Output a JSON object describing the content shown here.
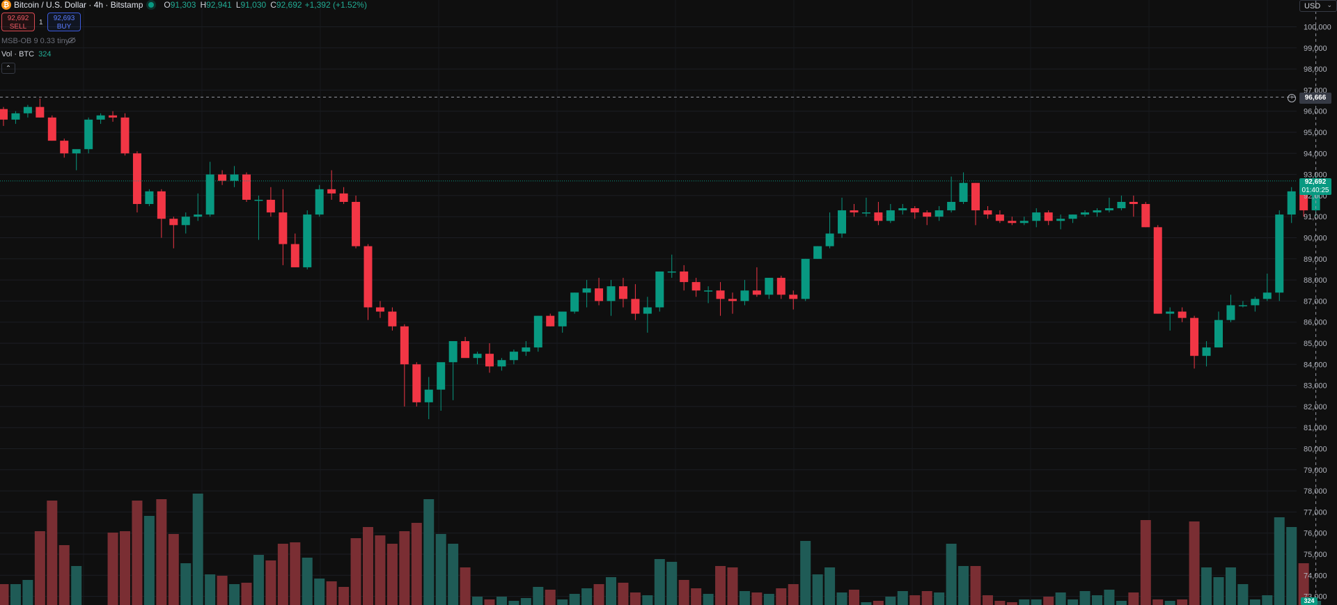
{
  "header": {
    "symbol_icon": "bitcoin-icon",
    "title": "Bitcoin / U.S. Dollar · 4h · Bitstamp",
    "open_key": "O",
    "open_val": "91,303",
    "high_key": "H",
    "high_val": "92,941",
    "low_key": "L",
    "low_val": "91,030",
    "close_key": "C",
    "close_val": "92,692",
    "change": "+1,392 (+1.52%)"
  },
  "trade": {
    "sell_price": "92,692",
    "sell_label": "SELL",
    "buy_price": "92,693",
    "buy_label": "BUY",
    "spread": "1"
  },
  "indicators": {
    "msb": "MSB-OB 9 0.33 tiny",
    "volume_label": "Vol · BTC",
    "volume_value": "324"
  },
  "axis": {
    "currency": "USD",
    "crosshair_price": "96,666",
    "last_price": "92,692",
    "countdown": "01:40:25",
    "volume_tag": "324",
    "ticks": [
      "100,000",
      "99,000",
      "98,000",
      "97,000",
      "96,000",
      "95,000",
      "94,000",
      "93,000",
      "92,000",
      "91,000",
      "90,000",
      "89,000",
      "88,000",
      "87,000",
      "86,000",
      "85,000",
      "84,000",
      "83,000",
      "82,000",
      "81,000",
      "80,000",
      "79,000",
      "78,000",
      "77,000",
      "76,000",
      "75,000",
      "74,000",
      "73,000"
    ]
  },
  "colors": {
    "up": "#089981",
    "down": "#f23645",
    "bg": "#0f0f0f",
    "vol_up": "#1f5b56",
    "vol_down": "#7a2e33"
  },
  "chart_data": {
    "type": "candlestick",
    "symbol": "BTCUSD",
    "interval": "4h",
    "ylim": [
      73000,
      100500
    ],
    "candles": [
      [
        96100,
        96200,
        95300,
        95600,
        15
      ],
      [
        95600,
        96000,
        95400,
        95900,
        15
      ],
      [
        95900,
        96300,
        95700,
        96200,
        18
      ],
      [
        96200,
        96600,
        95700,
        95700,
        53
      ],
      [
        95700,
        95800,
        94600,
        94600,
        75
      ],
      [
        94600,
        94700,
        93800,
        94000,
        43
      ],
      [
        94000,
        94100,
        93200,
        94200,
        28
      ],
      [
        94200,
        95700,
        94000,
        95600,
        0
      ],
      [
        95600,
        95900,
        95400,
        95800,
        0
      ],
      [
        95800,
        96000,
        95500,
        95700,
        52
      ],
      [
        95700,
        95900,
        93900,
        94000,
        53
      ],
      [
        94000,
        94100,
        91200,
        91600,
        75
      ],
      [
        91600,
        92300,
        91500,
        92200,
        64
      ],
      [
        92200,
        92300,
        90000,
        90900,
        76
      ],
      [
        90900,
        91000,
        89500,
        90600,
        51
      ],
      [
        90600,
        91200,
        90200,
        91000,
        30
      ],
      [
        91000,
        92100,
        90800,
        91100,
        80
      ],
      [
        91100,
        93600,
        91000,
        93000,
        22
      ],
      [
        93000,
        93200,
        92500,
        92700,
        21
      ],
      [
        92700,
        93400,
        92400,
        93000,
        15
      ],
      [
        93000,
        93100,
        91700,
        91800,
        16
      ],
      [
        91800,
        92000,
        89900,
        91800,
        36
      ],
      [
        91800,
        92400,
        91000,
        91200,
        32
      ],
      [
        91200,
        92300,
        88700,
        89700,
        44
      ],
      [
        89700,
        90200,
        88600,
        88600,
        45
      ],
      [
        88600,
        91300,
        88500,
        91100,
        34
      ],
      [
        91100,
        92500,
        91000,
        92300,
        19
      ],
      [
        92300,
        93200,
        91800,
        92100,
        17
      ],
      [
        92100,
        92400,
        91600,
        91700,
        13
      ],
      [
        91700,
        92000,
        89500,
        89600,
        48
      ],
      [
        89600,
        89700,
        86100,
        86700,
        56
      ],
      [
        86700,
        87000,
        86200,
        86500,
        50
      ],
      [
        86500,
        86700,
        85600,
        85800,
        44
      ],
      [
        85800,
        85900,
        82000,
        84000,
        53
      ],
      [
        84000,
        84100,
        82000,
        82200,
        59
      ],
      [
        82200,
        83400,
        81400,
        82800,
        76
      ],
      [
        82800,
        84000,
        81800,
        84100,
        51
      ],
      [
        84100,
        85000,
        82300,
        85100,
        44
      ],
      [
        85100,
        85300,
        84400,
        84300,
        27
      ],
      [
        84300,
        84600,
        84000,
        84500,
        6
      ],
      [
        84500,
        85000,
        83600,
        83900,
        4
      ],
      [
        83900,
        84300,
        83700,
        84200,
        6
      ],
      [
        84200,
        84700,
        84000,
        84600,
        3
      ],
      [
        84600,
        85100,
        84400,
        84800,
        5
      ],
      [
        84800,
        86300,
        84600,
        86300,
        13
      ],
      [
        86300,
        86400,
        85800,
        85800,
        11
      ],
      [
        85800,
        86500,
        85500,
        86500,
        4
      ],
      [
        86500,
        87400,
        86400,
        87400,
        8
      ],
      [
        87400,
        88000,
        86700,
        87600,
        12
      ],
      [
        87600,
        88100,
        86800,
        87000,
        15
      ],
      [
        87000,
        88000,
        86300,
        87700,
        20
      ],
      [
        87700,
        88100,
        86700,
        87100,
        16
      ],
      [
        87100,
        87800,
        86100,
        86400,
        9
      ],
      [
        86400,
        87200,
        85500,
        86700,
        7
      ],
      [
        86700,
        88400,
        86500,
        88400,
        33
      ],
      [
        88400,
        89200,
        88100,
        88400,
        31
      ],
      [
        88400,
        88700,
        87500,
        87900,
        18
      ],
      [
        87900,
        88100,
        87200,
        87500,
        12
      ],
      [
        87500,
        87700,
        86900,
        87500,
        8
      ],
      [
        87500,
        87900,
        86300,
        87100,
        28
      ],
      [
        87100,
        87400,
        86400,
        87000,
        27
      ],
      [
        87000,
        88000,
        86800,
        87500,
        10
      ],
      [
        87500,
        88600,
        87200,
        87300,
        9
      ],
      [
        87300,
        88100,
        87100,
        88100,
        8
      ],
      [
        88100,
        88200,
        87100,
        87300,
        12
      ],
      [
        87300,
        87500,
        86600,
        87100,
        15
      ],
      [
        87100,
        89000,
        87000,
        89000,
        46
      ],
      [
        89000,
        89600,
        89000,
        89600,
        22
      ],
      [
        89600,
        91200,
        89500,
        90200,
        27
      ],
      [
        90200,
        91900,
        90000,
        91300,
        9
      ],
      [
        91300,
        91600,
        91000,
        91200,
        11
      ],
      [
        91200,
        91900,
        91000,
        91200,
        2
      ],
      [
        91200,
        91700,
        90600,
        90800,
        3
      ],
      [
        90800,
        91600,
        90700,
        91300,
        6
      ],
      [
        91300,
        91600,
        91100,
        91400,
        10
      ],
      [
        91400,
        91500,
        90900,
        91200,
        7
      ],
      [
        91200,
        91300,
        90600,
        91000,
        10
      ],
      [
        91000,
        91500,
        90800,
        91300,
        9
      ],
      [
        91300,
        92900,
        91200,
        91700,
        44
      ],
      [
        91700,
        93100,
        91600,
        92600,
        28
      ],
      [
        92600,
        92600,
        90600,
        91300,
        28
      ],
      [
        91300,
        91500,
        90900,
        91100,
        7
      ],
      [
        91100,
        91300,
        90700,
        90800,
        3
      ],
      [
        90800,
        91000,
        90600,
        90700,
        2
      ],
      [
        90700,
        91000,
        90600,
        90800,
        4
      ],
      [
        90800,
        91400,
        90500,
        91200,
        4
      ],
      [
        91200,
        91300,
        90600,
        90800,
        6
      ],
      [
        90800,
        91100,
        90400,
        90900,
        9
      ],
      [
        90900,
        91100,
        90700,
        91100,
        4
      ],
      [
        91100,
        91300,
        91000,
        91200,
        10
      ],
      [
        91200,
        91400,
        91000,
        91300,
        7
      ],
      [
        91300,
        91900,
        91200,
        91400,
        11
      ],
      [
        91400,
        92000,
        91300,
        91700,
        3
      ],
      [
        91700,
        92000,
        91000,
        91600,
        9
      ],
      [
        91600,
        91700,
        90500,
        90500,
        61
      ],
      [
        90500,
        90600,
        86400,
        86400,
        4
      ],
      [
        86400,
        86700,
        85600,
        86500,
        3
      ],
      [
        86500,
        86700,
        86000,
        86200,
        4
      ],
      [
        86200,
        86300,
        83800,
        84400,
        60
      ],
      [
        84400,
        85100,
        83900,
        84800,
        27
      ],
      [
        84800,
        86500,
        84800,
        86100,
        20
      ],
      [
        86100,
        87300,
        86000,
        86800,
        27
      ],
      [
        86800,
        87000,
        86700,
        86800,
        15
      ],
      [
        86800,
        87200,
        86500,
        87100,
        4
      ],
      [
        87100,
        88300,
        87000,
        87400,
        7
      ],
      [
        87400,
        91300,
        87000,
        91100,
        63
      ],
      [
        91100,
        92400,
        90700,
        92200,
        56
      ],
      [
        92200,
        92500,
        91000,
        91300,
        30
      ],
      [
        91300,
        92941,
        91030,
        92692,
        3
      ]
    ]
  }
}
